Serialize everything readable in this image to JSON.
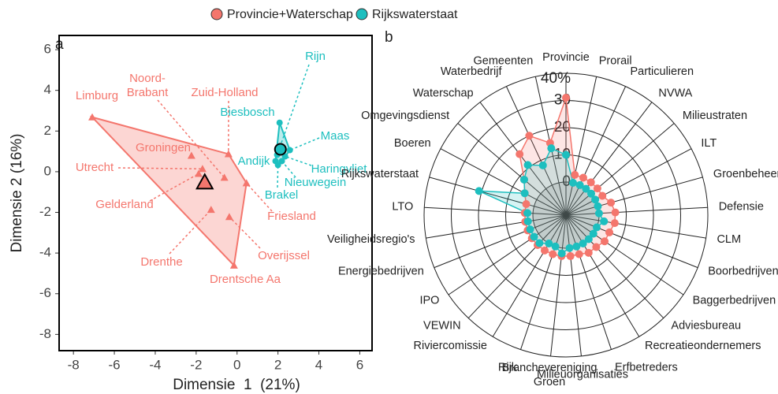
{
  "chart_data": [
    {
      "type": "scatter",
      "panel": "a",
      "xlabel": "Dimensie  1  (21%)",
      "ylabel": "Dimensie 2 (16%)",
      "xlim": [
        -8.7,
        6.6
      ],
      "ylim": [
        -8.8,
        6.7
      ],
      "xticks": [
        -8,
        -6,
        -4,
        -2,
        0,
        2,
        4,
        6
      ],
      "yticks": [
        -8,
        -6,
        -4,
        -2,
        0,
        2,
        4,
        6
      ],
      "series": [
        {
          "name": "Provincie+Waterschap",
          "color": "#f4766d",
          "marker": "triangle",
          "labels": [
            "Limburg",
            "Noord-\nBrabant",
            "Zuid-Holland",
            "Groningen",
            "Utrecht",
            "Gelderland",
            "Drenthe",
            "Friesland",
            "Overijssel",
            "Drentsche Aa"
          ],
          "x": [
            -7.08,
            -0.62,
            -0.42,
            -2.23,
            -1.69,
            -1.88,
            -1.27,
            0.46,
            -0.38,
            -0.15
          ],
          "y": [
            2.68,
            -0.29,
            0.87,
            0.79,
            0.14,
            -0.1,
            -1.87,
            -0.56,
            -2.22,
            -4.61
          ],
          "centroid": [
            -1.58,
            -0.52
          ]
        },
        {
          "name": "Rijkswaterstaat",
          "color": "#1dbfbf",
          "marker": "circle",
          "labels": [
            "Rijn",
            "Biesbosch",
            "Maas",
            "Haringvliet",
            "Nieuwegein",
            "Andijk",
            "Brakel"
          ],
          "x": [
            1.96,
            2.08,
            2.58,
            2.35,
            2.19,
            1.88,
            2.0
          ],
          "y": [
            0.83,
            2.41,
            1.06,
            0.75,
            0.52,
            0.52,
            0.33
          ],
          "centroid": [
            2.12,
            1.1
          ]
        }
      ]
    },
    {
      "type": "radar",
      "panel": "b",
      "categories": [
        "Provincie",
        "Prorail",
        "Particulieren",
        "NVWA",
        "Milieustraten",
        "ILT",
        "Groenbeheerders",
        "Defensie",
        "CLM",
        "Boorbedrijven",
        "Baggerbedrijven",
        "Adviesbureau",
        "Recreatieondernemers",
        "Erfbetreders",
        "Milieuorganisaties",
        "Branchevereniging\nGroen",
        "Rijk",
        "Riviercomissie",
        "VEWIN",
        "IPO",
        "Energiebedrijven",
        "Veiligheidsregio's",
        "LTO",
        "Rijkswaterstaat",
        "Boeren",
        "Omgevingsdienst",
        "Waterschap",
        "Waterbedrijf",
        "Gemeenten"
      ],
      "rlim": [
        0,
        40
      ],
      "rticks": [
        0,
        10,
        20,
        30,
        {
          "value": 40,
          "label": "40%"
        }
      ],
      "series": [
        {
          "name": "Provincie+Waterschap",
          "color": "#f4766d",
          "values": [
            31,
            3,
            3,
            3,
            3,
            3,
            5,
            6,
            6,
            5,
            5,
            4,
            4,
            3,
            3,
            3,
            3,
            3,
            3,
            3,
            3,
            3,
            3,
            3,
            5,
            8,
            16,
            20,
            15
          ]
        },
        {
          "name": "Rijkswaterstaat",
          "color": "#1dbfbf",
          "values": [
            10,
            0,
            0,
            0,
            0,
            0,
            0,
            0,
            2,
            0,
            0,
            0,
            0,
            0,
            0,
            2,
            0,
            0,
            2,
            2,
            2,
            2,
            2,
            21,
            5,
            8,
            11,
            8,
            13
          ]
        }
      ]
    }
  ]
}
